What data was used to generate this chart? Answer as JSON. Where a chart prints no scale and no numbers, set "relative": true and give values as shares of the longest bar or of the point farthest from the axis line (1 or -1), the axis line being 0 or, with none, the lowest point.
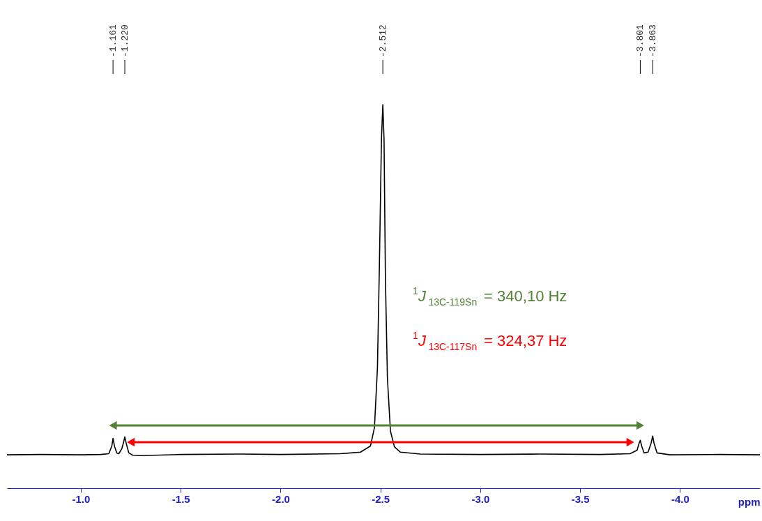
{
  "chart_data": {
    "type": "line",
    "relative": true,
    "xlabel": "ppm",
    "xlim": [
      -0.63,
      -4.4
    ],
    "xticks": [
      {
        "value": -1,
        "label": "-1.0"
      },
      {
        "value": -1.5,
        "label": "-1.5"
      },
      {
        "value": -2,
        "label": "-2.0"
      },
      {
        "value": -2.5,
        "label": "-2.5"
      },
      {
        "value": -3,
        "label": "-3.0"
      },
      {
        "value": -3.5,
        "label": "-3.5"
      },
      {
        "value": -4,
        "label": "-4.0"
      }
    ],
    "x": [
      -0.63,
      -0.8,
      -1.0,
      -1.1,
      -1.14,
      -1.155,
      -1.161,
      -1.168,
      -1.18,
      -1.19,
      -1.205,
      -1.214,
      -1.22,
      -1.227,
      -1.24,
      -1.26,
      -1.3,
      -1.5,
      -1.8,
      -2.0,
      -2.3,
      -2.4,
      -2.45,
      -2.47,
      -2.485,
      -2.495,
      -2.505,
      -2.512,
      -2.518,
      -2.525,
      -2.535,
      -2.55,
      -2.57,
      -2.6,
      -2.7,
      -3.0,
      -3.3,
      -3.6,
      -3.75,
      -3.785,
      -3.795,
      -3.801,
      -3.808,
      -3.82,
      -3.84,
      -3.855,
      -3.863,
      -3.87,
      -3.885,
      -3.95,
      -4.2,
      -4.4
    ],
    "series": [
      {
        "color": "#000000",
        "values": [
          0.087,
          0.088,
          0.087,
          0.088,
          0.09,
          0.11,
          0.13,
          0.11,
          0.092,
          0.09,
          0.103,
          0.12,
          0.134,
          0.117,
          0.092,
          0.086,
          0.085,
          0.088,
          0.089,
          0.088,
          0.09,
          0.094,
          0.11,
          0.158,
          0.314,
          0.588,
          0.909,
          1.0,
          0.909,
          0.543,
          0.286,
          0.149,
          0.108,
          0.094,
          0.089,
          0.088,
          0.089,
          0.088,
          0.09,
          0.099,
          0.117,
          0.125,
          0.11,
          0.092,
          0.094,
          0.117,
          0.136,
          0.117,
          0.092,
          0.087,
          0.088,
          0.087
        ]
      }
    ],
    "annotations": [
      "-1.161",
      "-1.220",
      "-2.512",
      "-3.801",
      "-3.863",
      "$^{1}$J$_{13C-119Sn}$ = 340,10 Hz",
      "$^{1}$J$_{13C-117Sn}$ = 324,37 Hz"
    ]
  }
}
